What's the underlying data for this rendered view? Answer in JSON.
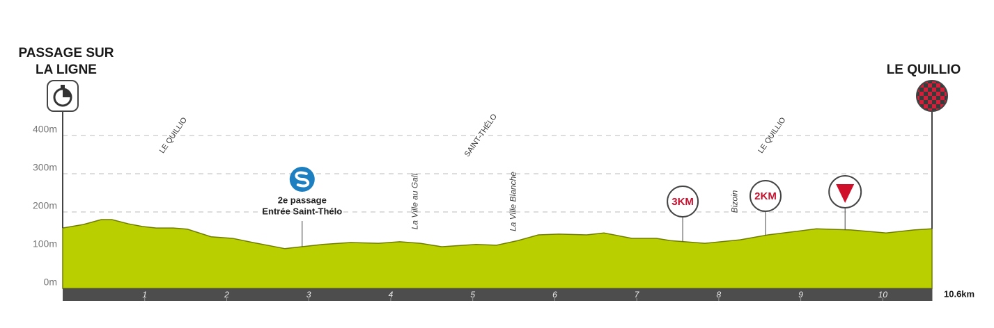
{
  "chart_data": {
    "type": "area",
    "start_title": [
      "PASSAGE SUR",
      "LA LIGNE"
    ],
    "finish_title": "LE QUILLIO",
    "x": [
      0,
      0.25,
      0.47,
      0.6,
      0.8,
      0.97,
      1.14,
      1.35,
      1.52,
      1.81,
      2.07,
      2.32,
      2.54,
      2.71,
      2.92,
      3.17,
      3.51,
      3.85,
      4.11,
      4.36,
      4.62,
      5.04,
      5.29,
      5.55,
      5.8,
      6.05,
      6.39,
      6.6,
      6.94,
      7.24,
      7.41,
      7.83,
      8.26,
      8.6,
      8.94,
      9.19,
      9.61,
      10.04,
      10.38,
      10.6
    ],
    "values": [
      158,
      167,
      180,
      180,
      169,
      162,
      158,
      158,
      155,
      135,
      131,
      120,
      111,
      104,
      109,
      115,
      120,
      118,
      122,
      118,
      109,
      115,
      113,
      125,
      140,
      142,
      140,
      145,
      131,
      131,
      125,
      118,
      127,
      140,
      149,
      156,
      153,
      145,
      153,
      156
    ],
    "color": "#b9cf00",
    "xlim": [
      0,
      10.6
    ],
    "ylim": [
      0,
      400
    ],
    "xticks": [
      1,
      2,
      3,
      4,
      5,
      6,
      7,
      8,
      9,
      10,
      {
        "value": 10.6,
        "label": "10.6km"
      }
    ],
    "yticks": [
      {
        "value": 0,
        "label": "0m"
      },
      {
        "value": 100,
        "label": "100m"
      },
      {
        "value": 200,
        "label": "200m"
      },
      {
        "value": 300,
        "label": "300m"
      },
      {
        "value": 400,
        "label": "400m"
      }
    ],
    "grid": true,
    "communes": [
      {
        "x": 1.35,
        "label": "LE QUILLIO"
      },
      {
        "x": 5.1,
        "label": "SAINT-THÉLO"
      },
      {
        "x": 8.65,
        "label": "LE QUILLIO"
      }
    ],
    "places": [
      {
        "x": 4.3,
        "label": "La Ville au Gall"
      },
      {
        "x": 5.5,
        "label": "La Ville Blanche"
      },
      {
        "x": 8.2,
        "label": "Bizoin"
      }
    ],
    "sprint": {
      "x": 2.92,
      "label": [
        "2e passage",
        "Entrée Saint-Thélo"
      ]
    },
    "markers": [
      {
        "x": 7.56,
        "label": "3KM"
      },
      {
        "x": 8.57,
        "label": "2KM"
      }
    ],
    "flamme_rouge": {
      "x": 9.54
    }
  }
}
